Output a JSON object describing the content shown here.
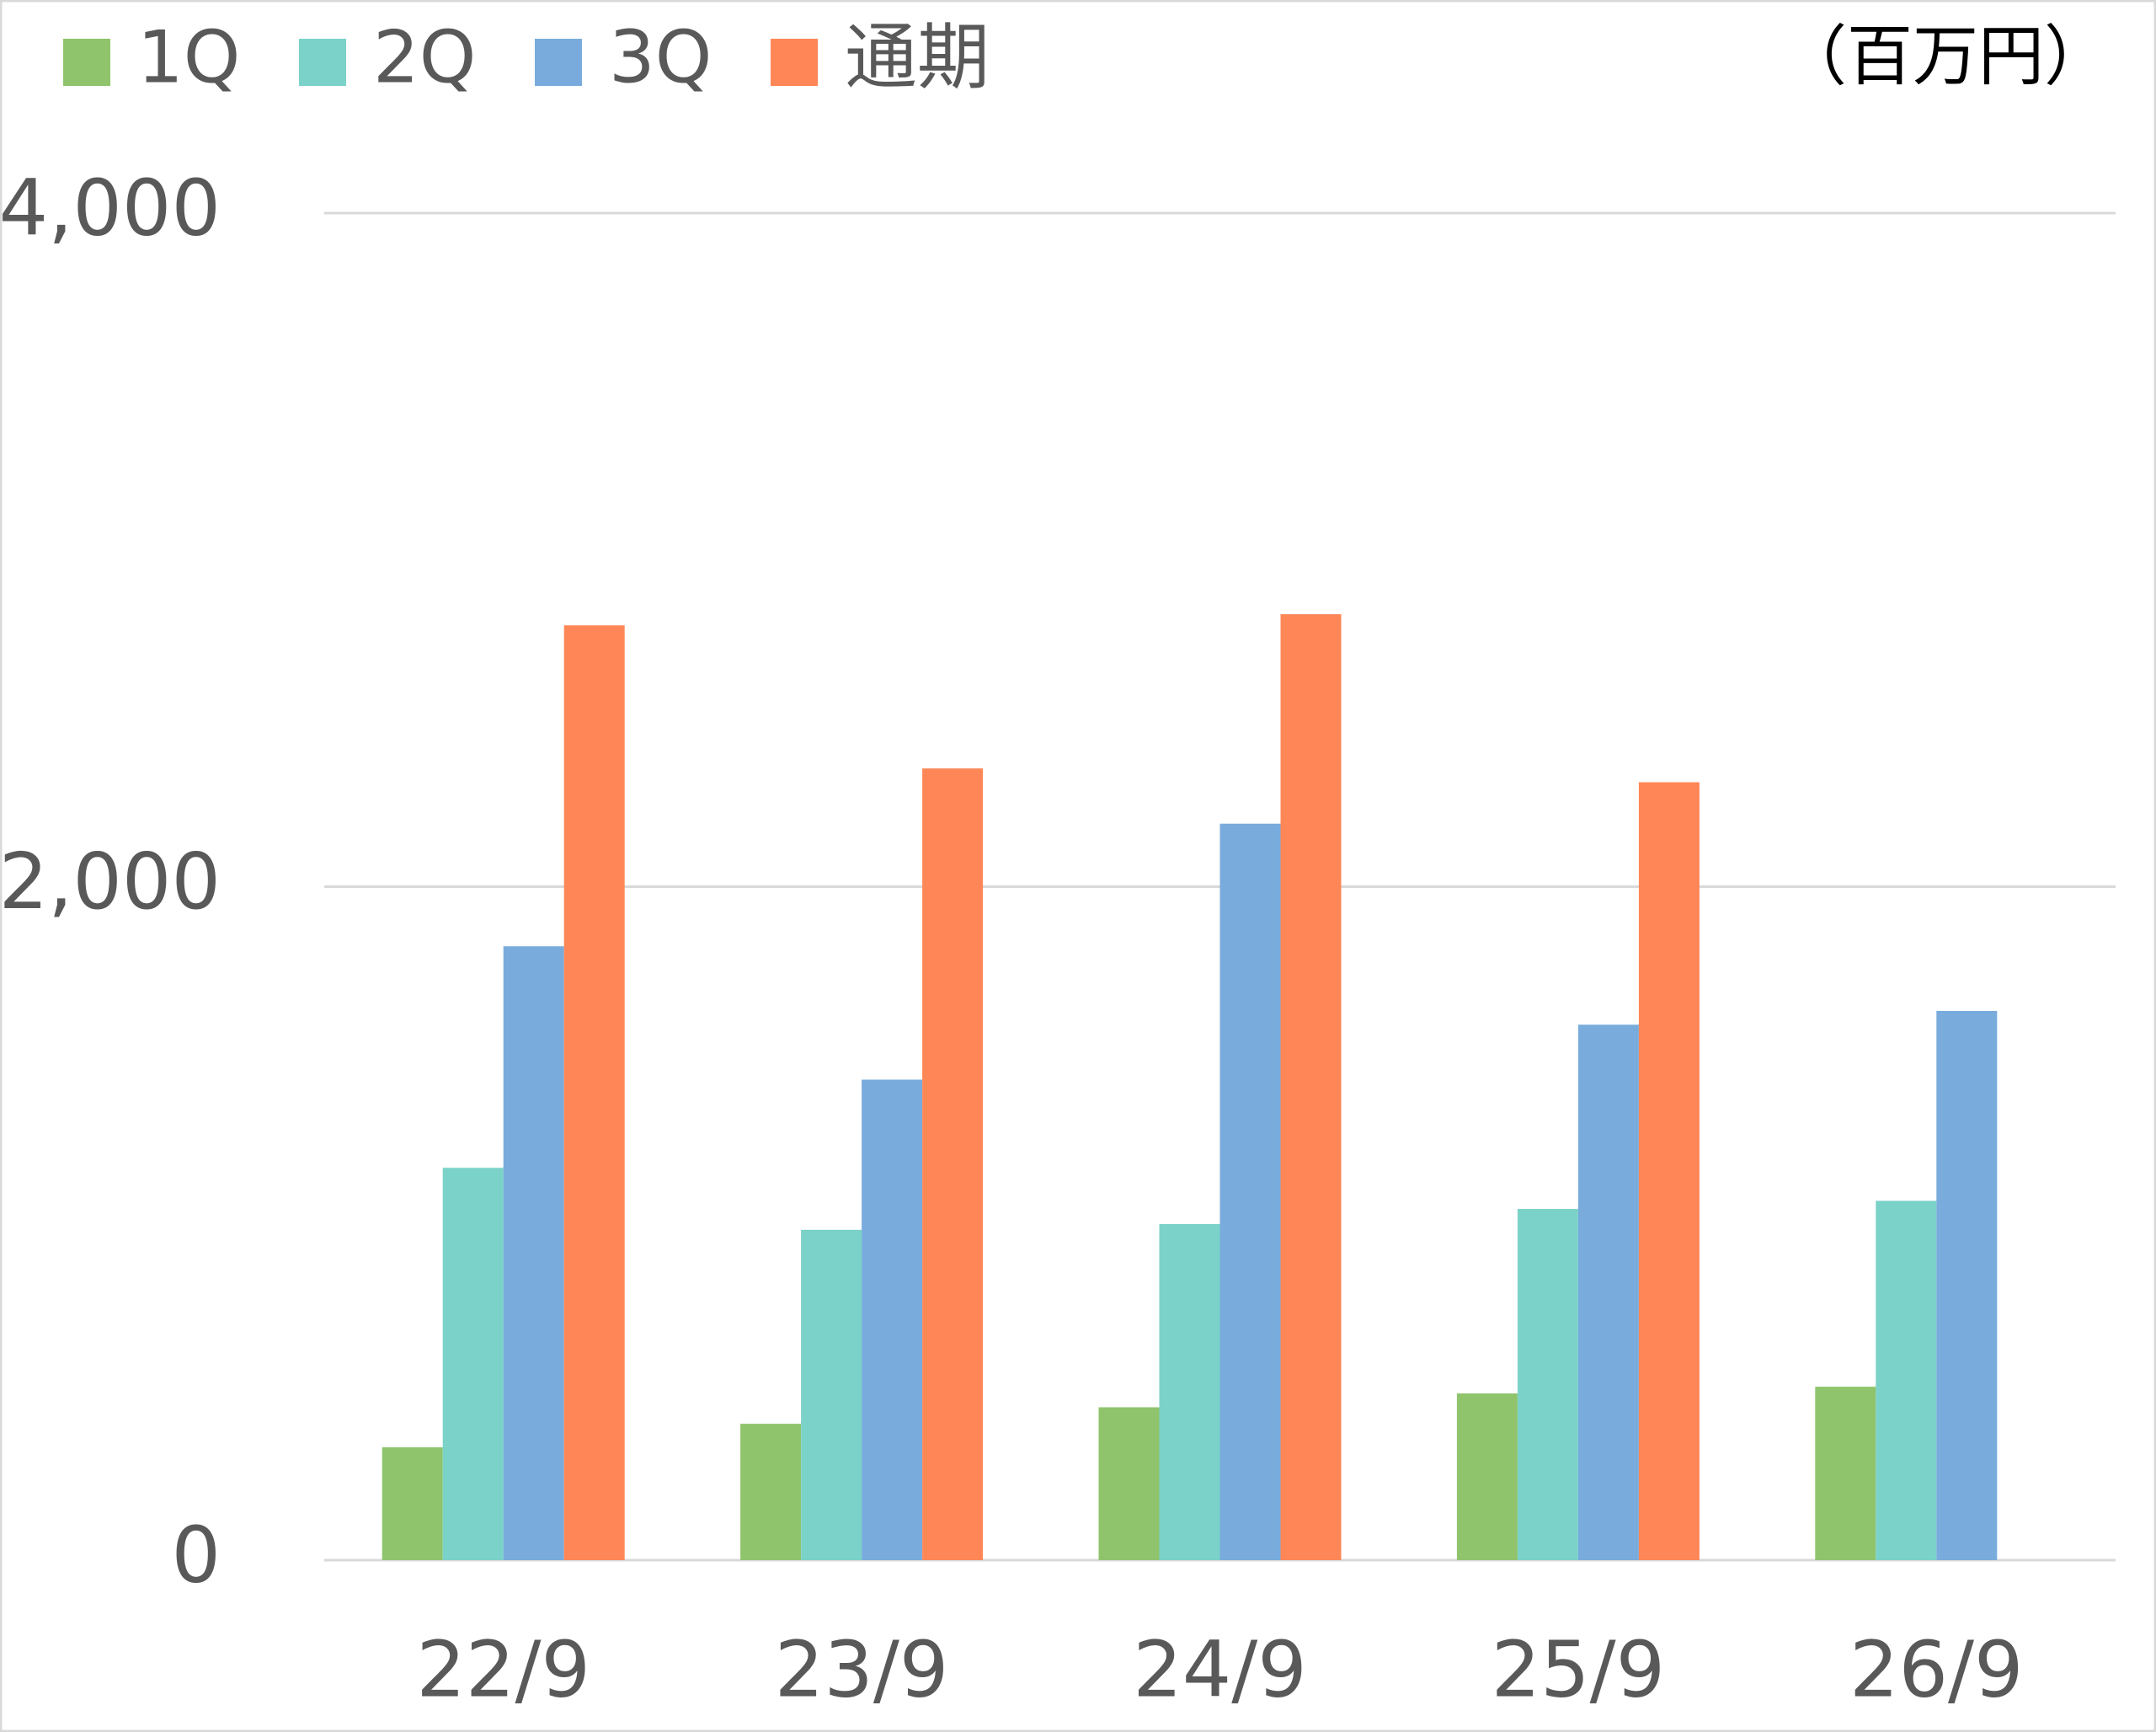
{
  "chart_data": {
    "type": "bar",
    "unit": "（百万円）",
    "categories": [
      "22/9",
      "23/9",
      "24/9",
      "25/9",
      "26/9"
    ],
    "series": [
      {
        "name": "1Q",
        "color": "#8fc46d",
        "values": [
          335,
          405,
          454,
          495,
          515
        ]
      },
      {
        "name": "2Q",
        "color": "#7bd2c8",
        "values": [
          1165,
          981,
          998,
          1043,
          1067
        ]
      },
      {
        "name": "3Q",
        "color": "#79acdc",
        "values": [
          1823,
          1427,
          2187,
          1590,
          1631
        ]
      },
      {
        "name": "通期",
        "color": "#ff8757",
        "values": [
          2776,
          2351,
          2809,
          2310,
          null
        ]
      }
    ],
    "ylim": [
      0,
      4000
    ],
    "yticks": [
      0,
      {
        "value": 2000,
        "label": "2,000"
      },
      {
        "value": 4000,
        "label": "4,000"
      }
    ],
    "grid": true,
    "legend": "top-left"
  }
}
